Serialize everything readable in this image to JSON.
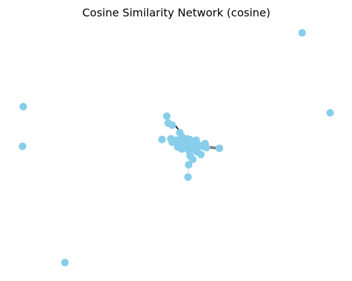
{
  "figure": {
    "title": "Cosine Similarity Network (cosine)",
    "node_color": "#87ceeb",
    "background_color": "#ffffff"
  },
  "graph": {
    "node_count": 40,
    "isolated_node_count": 6,
    "edge_weight_style": "width and darkness scale with cosine similarity"
  }
}
